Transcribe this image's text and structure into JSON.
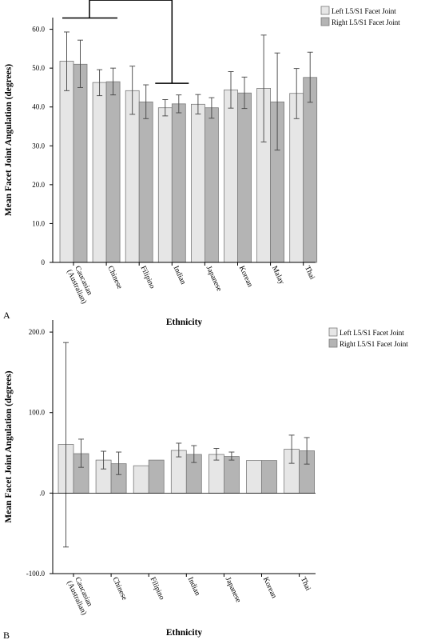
{
  "chart_data": [
    {
      "panel_label": "A",
      "type": "bar",
      "xlabel": "Ethnicity",
      "ylabel": "Mean Facet Joint Angulation (degrees)",
      "ylim": [
        0,
        63
      ],
      "yticks": [
        "0",
        "10.0",
        "20.0",
        "30.0",
        "40.0",
        "50.0",
        "60.0"
      ],
      "tick_values": [
        0,
        10,
        20,
        30,
        40,
        50,
        60
      ],
      "categories": [
        "Caucasian (Australian)",
        "Chinese",
        "Filipino",
        "Indian",
        "Japanese",
        "Korean",
        "Malay",
        "Thai"
      ],
      "category_lines": [
        [
          "Caucasian",
          "(Australian)"
        ],
        [
          "Chinese"
        ],
        [
          "Filipino"
        ],
        [
          "Indian"
        ],
        [
          "Japanese"
        ],
        [
          "Korean"
        ],
        [
          "Malay"
        ],
        [
          "Thai"
        ]
      ],
      "series": [
        {
          "name": "Left L5/S1 Facet Joint",
          "color": "#e6e6e6",
          "values": [
            51.8,
            46.3,
            44.2,
            39.8,
            40.7,
            44.4,
            44.8,
            43.5
          ],
          "err_low": [
            44.2,
            42.9,
            38.1,
            37.7,
            38.2,
            39.7,
            31.0,
            37.0
          ],
          "err_high": [
            59.3,
            49.6,
            50.5,
            41.9,
            43.2,
            49.1,
            58.5,
            49.9
          ]
        },
        {
          "name": "Right L5/S1 Facet Joint",
          "color": "#b4b4b4",
          "values": [
            51.0,
            46.5,
            41.3,
            40.8,
            39.8,
            43.6,
            41.3,
            47.6
          ],
          "err_low": [
            45.0,
            43.1,
            37.0,
            38.5,
            37.1,
            39.6,
            28.9,
            41.2
          ],
          "err_high": [
            57.2,
            50.0,
            45.7,
            43.1,
            42.4,
            47.7,
            53.9,
            54.1
          ]
        }
      ],
      "annotation": "*",
      "comparison": [
        "Caucasian (Australian)",
        "Indian"
      ],
      "legend_position": "top-right",
      "grid": false
    },
    {
      "panel_label": "B",
      "type": "bar",
      "xlabel": "Ethnicity",
      "ylabel": "Mean Facet Joint Angulation (degrees)",
      "ylim": [
        -100,
        215
      ],
      "yticks": [
        "-100.0",
        ".0",
        "100.0",
        "200.0"
      ],
      "tick_values": [
        -100,
        0,
        100,
        200
      ],
      "categories": [
        "Caucasian (Australian)",
        "Chinese",
        "Filipino",
        "Indian",
        "Japanese",
        "Korean",
        "Thai"
      ],
      "category_lines": [
        [
          "Caucasian",
          "(Australian)"
        ],
        [
          "Chinese"
        ],
        [
          "Filipino"
        ],
        [
          "Indian"
        ],
        [
          "Japanese"
        ],
        [
          "Korean"
        ],
        [
          "Thai"
        ]
      ],
      "series": [
        {
          "name": "Left L5/S1 Facet Joint",
          "color": "#e6e6e6",
          "values": [
            60.5,
            41.0,
            34.0,
            53.0,
            48.0,
            40.5,
            54.5
          ],
          "err_low": [
            -67.0,
            30.0,
            null,
            45.0,
            41.0,
            null,
            37.0
          ],
          "err_high": [
            187.0,
            52.0,
            null,
            62.0,
            55.5,
            null,
            72.0
          ]
        },
        {
          "name": "Right L5/S1 Facet Joint",
          "color": "#b4b4b4",
          "values": [
            49.0,
            36.5,
            41.0,
            48.0,
            45.5,
            40.5,
            52.5
          ],
          "err_low": [
            32.0,
            23.0,
            null,
            38.0,
            41.0,
            null,
            36.0
          ],
          "err_high": [
            67.0,
            51.0,
            null,
            59.0,
            51.0,
            null,
            69.0
          ]
        }
      ],
      "legend_position": "top-right",
      "grid": false
    }
  ]
}
